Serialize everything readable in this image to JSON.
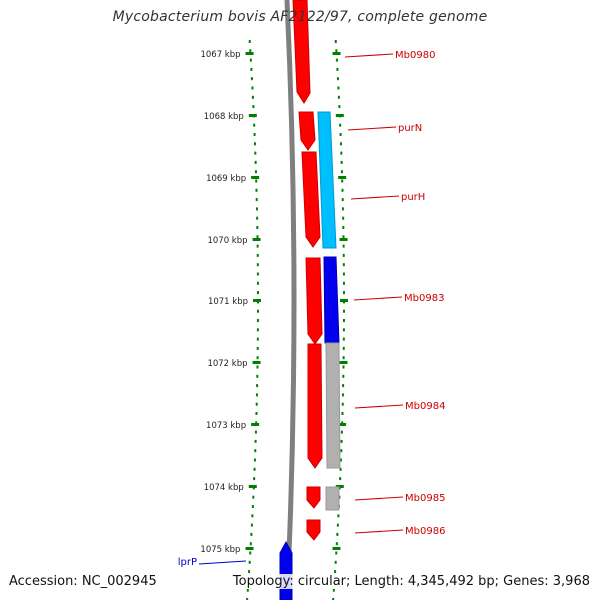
{
  "map": {
    "title": "Mycobacterium bovis AF2122/97, complete genome",
    "accession": "Accession: NC_002945",
    "summary": "Topology: circular; Length: 4,345,492 bp; Genes: 3,968",
    "colors": {
      "backbone": "#7f7f7f",
      "forward_gene": "#ff0000",
      "forward_gene_dark": "#cc0000",
      "reverse_gene_light": "#00bfff",
      "reverse_gene_blue": "#0000ee",
      "reverse_gene_grey": "#b0b0b0",
      "tick": "#008000",
      "label_red": "#cc0000",
      "label_blue": "#0000cc"
    },
    "ruler": [
      {
        "label": "1067 kbp"
      },
      {
        "label": "1068 kbp"
      },
      {
        "label": "1069 kbp"
      },
      {
        "label": "1070 kbp"
      },
      {
        "label": "1071 kbp"
      },
      {
        "label": "1072 kbp"
      },
      {
        "label": "1073 kbp"
      },
      {
        "label": "1074 kbp"
      },
      {
        "label": "1075 kbp"
      }
    ],
    "genes": [
      {
        "name": "Mb0980"
      },
      {
        "name": "purN"
      },
      {
        "name": "purH"
      },
      {
        "name": "Mb0983"
      },
      {
        "name": "Mb0984"
      },
      {
        "name": "Mb0985"
      },
      {
        "name": "Mb0986"
      },
      {
        "name": "lprP"
      }
    ]
  }
}
